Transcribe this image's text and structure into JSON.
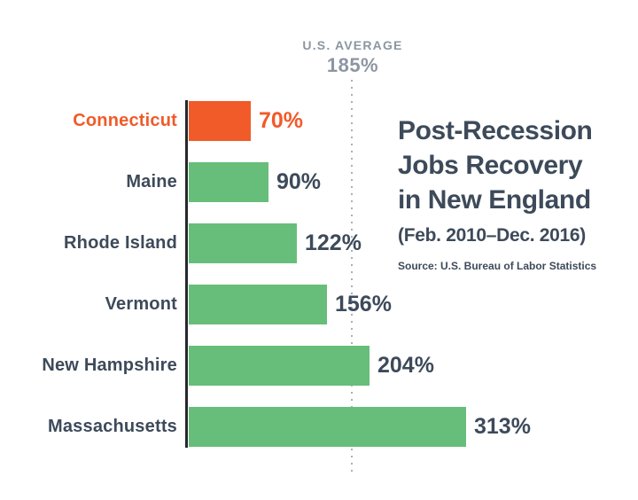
{
  "chart_data": {
    "type": "bar",
    "orientation": "horizontal",
    "title": "Post-Recession Jobs Recovery in New England",
    "title_lines": [
      "Post-Recession",
      "Jobs Recovery",
      "in New England"
    ],
    "subtitle": "(Feb. 2010–Dec. 2016)",
    "source": "Source: U.S. Bureau of Labor Statistics",
    "categories": [
      "Connecticut",
      "Maine",
      "Rhode Island",
      "Vermont",
      "New Hampshire",
      "Massachusetts"
    ],
    "values": [
      70,
      90,
      122,
      156,
      204,
      313
    ],
    "value_labels": [
      "70%",
      "90%",
      "122%",
      "156%",
      "204%",
      "313%"
    ],
    "unit": "%",
    "xlim": [
      0,
      330
    ],
    "grid": false,
    "legend": false,
    "highlight_index": 0,
    "reference_line": {
      "label": "U.S. AVERAGE",
      "value": 185,
      "value_label": "185%"
    },
    "colors": {
      "highlight": "#F15A29",
      "bar": "#66BE7A",
      "text": "#3D4A5A",
      "muted": "#8C96A2",
      "dots": "#A9B0B8",
      "axis": "#26282B"
    }
  }
}
